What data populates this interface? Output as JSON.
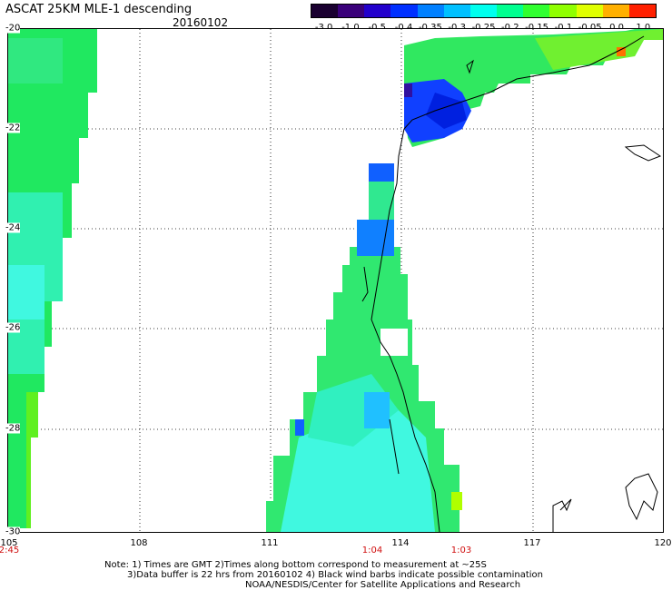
{
  "header": {
    "title": "ASCAT 25KM MLE-1 descending",
    "date": "20160102"
  },
  "colorbar": {
    "labels": [
      "-3.0",
      "-1.0",
      "-0.5",
      "-0.4",
      "-0.35",
      "-0.3",
      "-0.25",
      "-0.2",
      "-0.15",
      "-0.1",
      "-0.05",
      "0.0",
      "1.0"
    ],
    "colors": [
      "#1a0030",
      "#3a007a",
      "#2200cc",
      "#0030ff",
      "#0080ff",
      "#00c0ff",
      "#00ffee",
      "#00ff90",
      "#30ff30",
      "#90ff00",
      "#e0ff00",
      "#ffb000",
      "#ff2000"
    ]
  },
  "axes": {
    "lat_labels": [
      "-20",
      "-22",
      "-24",
      "-26",
      "-28",
      "-30"
    ],
    "lon_labels": [
      "105",
      "108",
      "111",
      "114",
      "117",
      "120"
    ]
  },
  "time_labels": [
    "2:45",
    "1:04",
    "1:03"
  ],
  "notes": {
    "line1": "Note: 1) Times are GMT 2)Times along bottom correspond to measurement at ~25S",
    "line2": "3)Data buffer is 22 hrs from 20160102 4) Black wind barbs indicate possible contamination",
    "line3": "NOAA/NESDIS/Center for Satellite Applications and Research"
  }
}
